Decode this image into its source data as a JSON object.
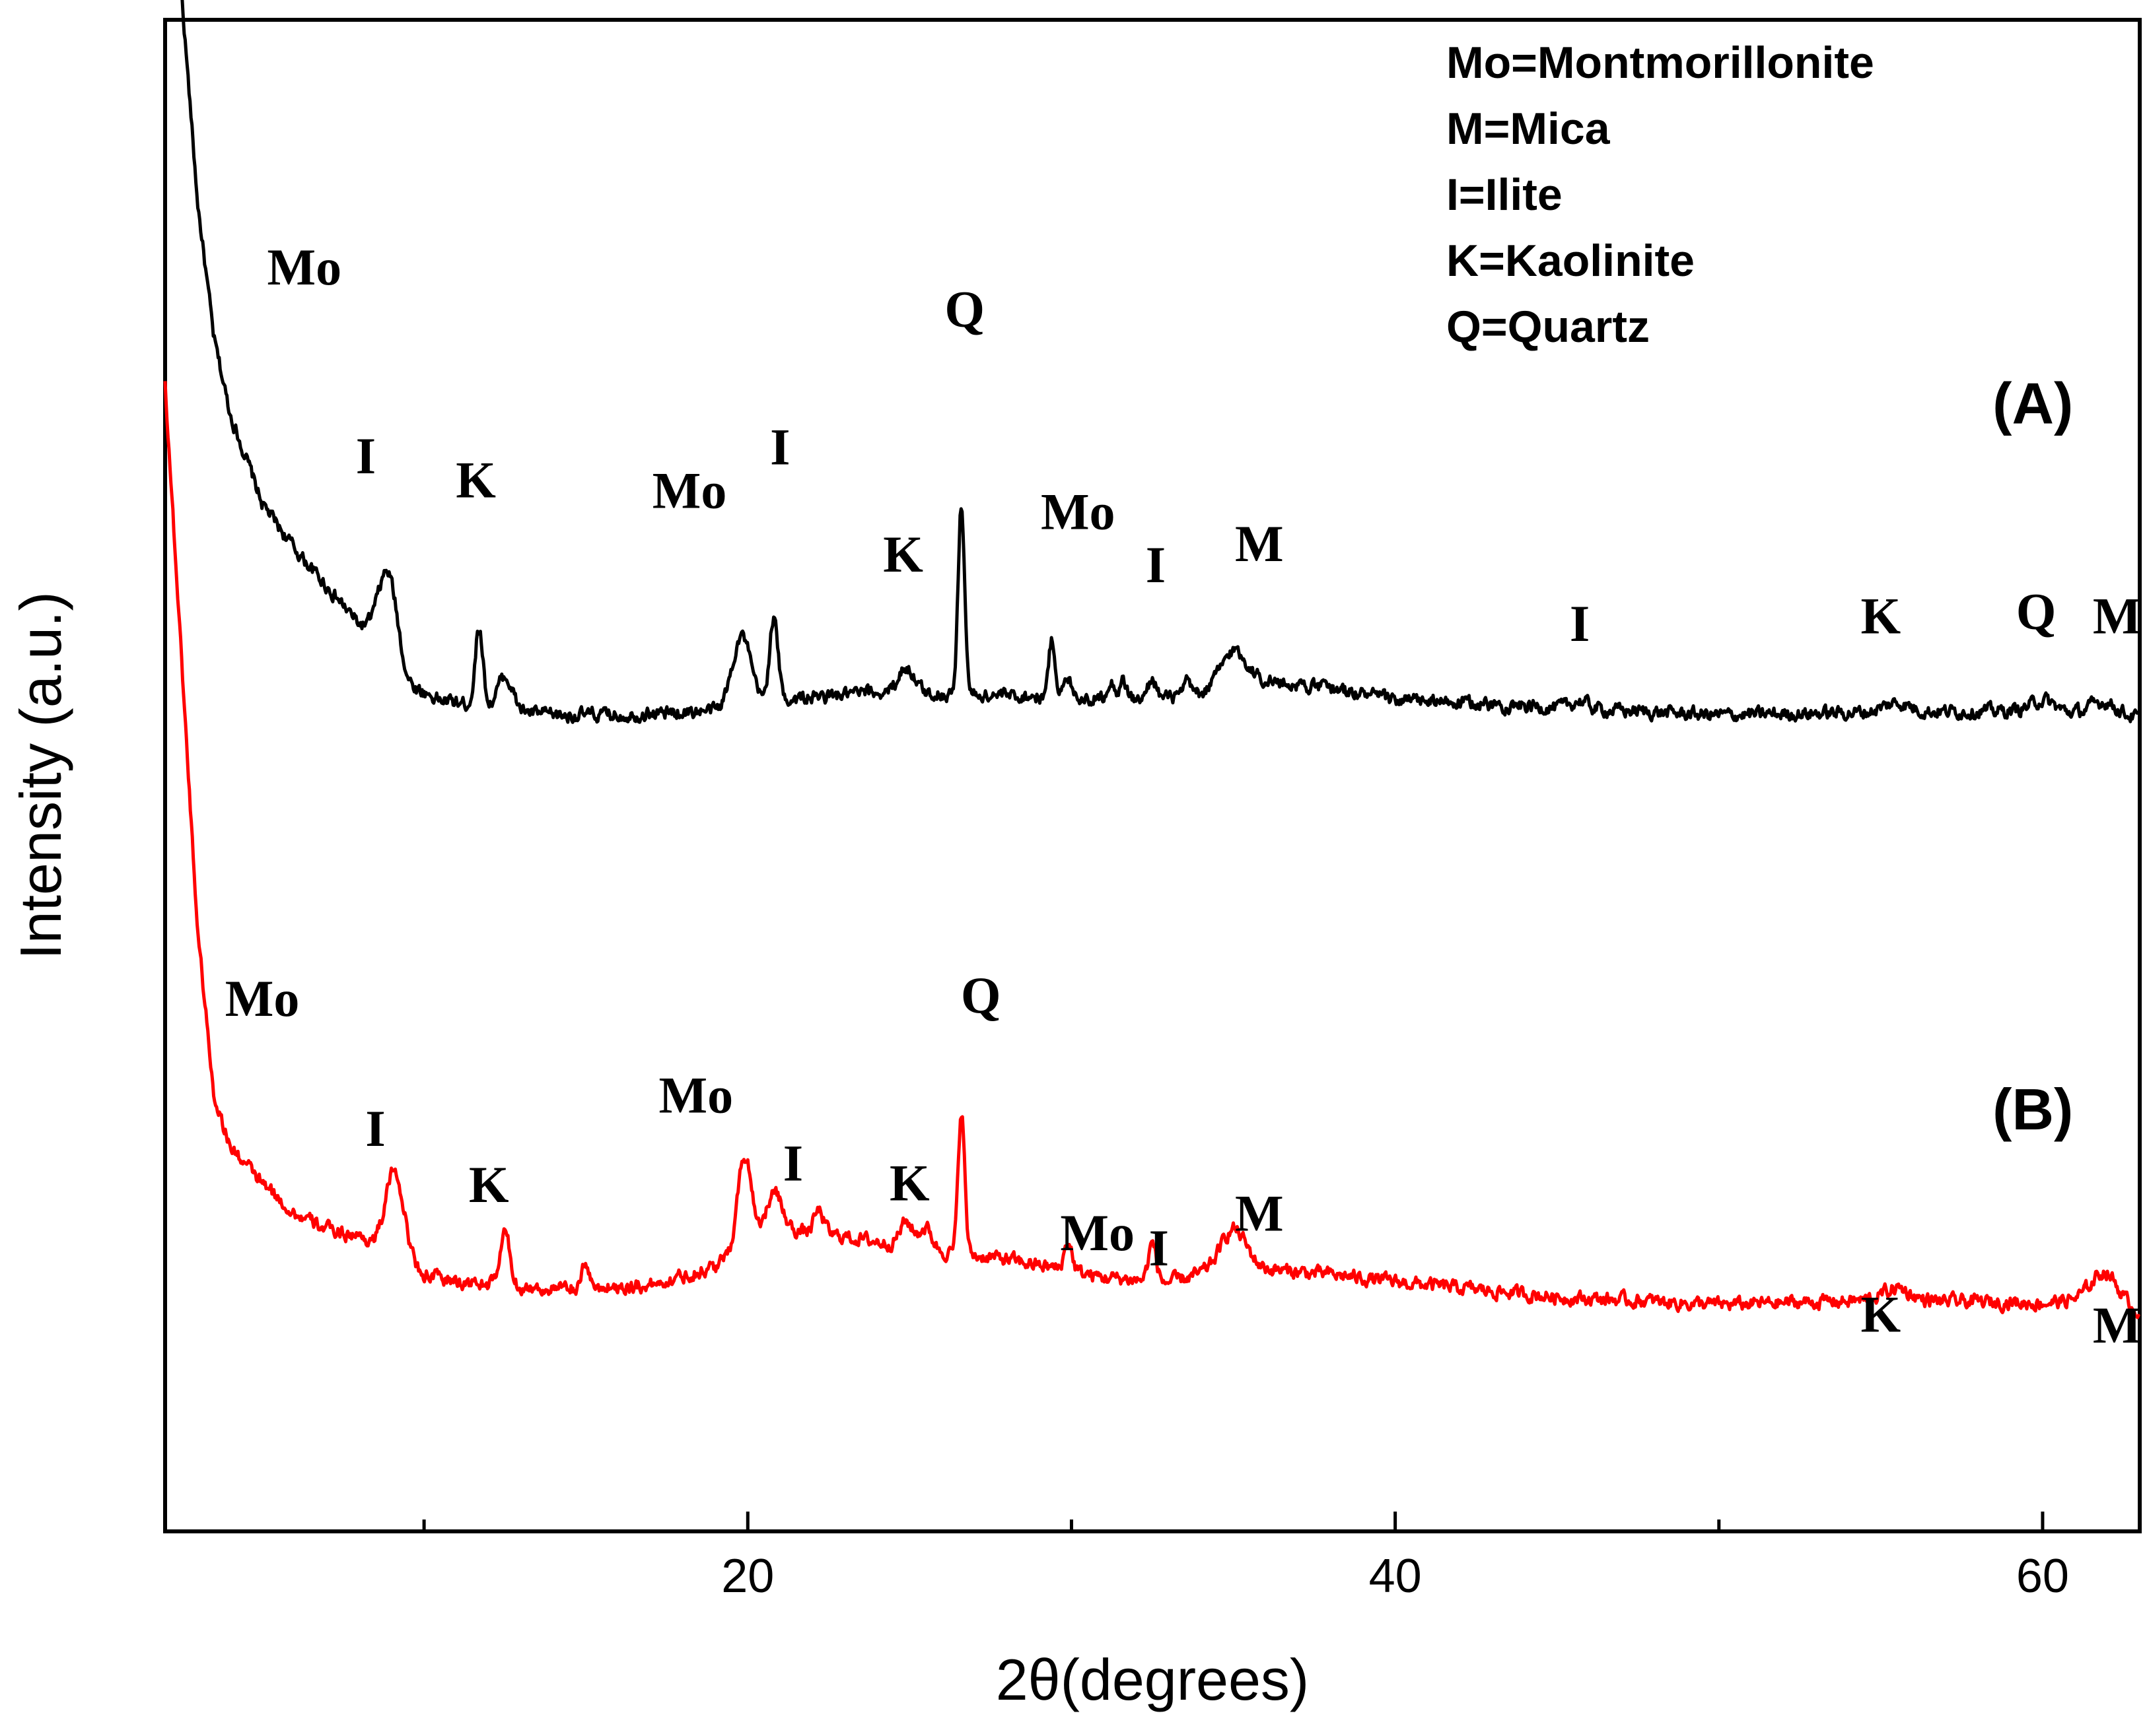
{
  "chart_data": {
    "type": "line",
    "title": "",
    "xlabel": "2θ(degrees)",
    "ylabel": "Intensity (a.u.)",
    "xlim": [
      2,
      63
    ],
    "ylim": [
      0,
      100
    ],
    "x_ticks": [
      20,
      40,
      60
    ],
    "x_tick_labels": [
      "20",
      "40",
      "60"
    ],
    "grid": false,
    "legend": {
      "placement": "top-right",
      "entries": [
        "Mo=Montmorillonite",
        "M=Mica",
        "I=Ilite",
        "K=Kaolinite",
        "Q=Quartz"
      ]
    },
    "series": [
      {
        "name": "(A)",
        "color": "#000000",
        "baseline": [
          [
            2.5,
            102
          ],
          [
            3,
            88
          ],
          [
            3.5,
            79
          ],
          [
            4,
            74
          ],
          [
            5,
            68
          ],
          [
            6,
            65
          ],
          [
            7,
            62.5
          ],
          [
            8,
            60
          ],
          [
            8.5,
            59.5
          ],
          [
            9.5,
            56
          ],
          [
            10.5,
            55
          ],
          [
            12,
            54.5
          ],
          [
            14,
            54
          ],
          [
            16,
            54
          ],
          [
            18,
            54.2
          ],
          [
            19,
            54.3
          ],
          [
            21,
            55
          ],
          [
            24,
            55.5
          ],
          [
            28,
            55.3
          ],
          [
            32,
            55
          ],
          [
            34,
            55.3
          ],
          [
            35,
            56.5
          ],
          [
            38,
            55.8
          ],
          [
            40,
            55
          ],
          [
            45,
            54.5
          ],
          [
            50,
            54
          ],
          [
            55,
            54.2
          ],
          [
            60,
            54.3
          ],
          [
            63,
            53.8
          ]
        ],
        "peaks": [
          {
            "x": 8.9,
            "height": 5.3,
            "width": 0.28,
            "label": "I"
          },
          {
            "x": 11.7,
            "height": 5.2,
            "width": 0.12,
            "label": "K"
          },
          {
            "x": 12.5,
            "height": 2.2,
            "width": 0.22,
            "label": ""
          },
          {
            "x": 19.8,
            "height": 4.7,
            "width": 0.28,
            "label": "Mo"
          },
          {
            "x": 20.8,
            "height": 5.5,
            "width": 0.13,
            "label": "I"
          },
          {
            "x": 24.9,
            "height": 1.7,
            "width": 0.25,
            "label": "K"
          },
          {
            "x": 26.6,
            "height": 12.5,
            "width": 0.1,
            "label": "Q"
          },
          {
            "x": 29.4,
            "height": 3.8,
            "width": 0.1,
            "label": "Mo"
          },
          {
            "x": 29.9,
            "height": 1.1,
            "width": 0.15,
            "label": ""
          },
          {
            "x": 31.2,
            "height": 1.2,
            "width": 0.12,
            "label": ""
          },
          {
            "x": 31.6,
            "height": 1.2,
            "width": 0.12,
            "label": ""
          },
          {
            "x": 32.5,
            "height": 1.4,
            "width": 0.12,
            "label": "I"
          },
          {
            "x": 33.6,
            "height": 0.9,
            "width": 0.12,
            "label": ""
          },
          {
            "x": 35.0,
            "height": 1.8,
            "width": 0.4,
            "label": "M"
          },
          {
            "x": 45.7,
            "height": 0.5,
            "width": 0.25,
            "label": "I"
          },
          {
            "x": 55.5,
            "height": 0.6,
            "width": 0.4,
            "label": "K"
          },
          {
            "x": 60.0,
            "height": 0.7,
            "width": 0.35,
            "label": "Q"
          },
          {
            "x": 61.9,
            "height": 0.9,
            "width": 0.4,
            "label": "M"
          }
        ]
      },
      {
        "name": "(B)",
        "color": "#ff0000",
        "baseline": [
          [
            2,
            76
          ],
          [
            2.5,
            58
          ],
          [
            3,
            40
          ],
          [
            3.5,
            29
          ],
          [
            4,
            25.5
          ],
          [
            5,
            23
          ],
          [
            6,
            21
          ],
          [
            7,
            20
          ],
          [
            8,
            19.5
          ],
          [
            9,
            18.5
          ],
          [
            10,
            17
          ],
          [
            11,
            16.5
          ],
          [
            14,
            16
          ],
          [
            17,
            16.3
          ],
          [
            19,
            17.5
          ],
          [
            20,
            19
          ],
          [
            21,
            20
          ],
          [
            23,
            19.5
          ],
          [
            26,
            18.5
          ],
          [
            28,
            18
          ],
          [
            31,
            16.8
          ],
          [
            33,
            16.5
          ],
          [
            35,
            17.5
          ],
          [
            38,
            17
          ],
          [
            40,
            16.5
          ],
          [
            45,
            15.5
          ],
          [
            50,
            15
          ],
          [
            55,
            15.3
          ],
          [
            60,
            15.1
          ],
          [
            62,
            15.5
          ],
          [
            63,
            14.5
          ]
        ],
        "peaks": [
          {
            "x": 9.1,
            "height": 5.5,
            "width": 0.28,
            "label": "I"
          },
          {
            "x": 12.5,
            "height": 3.5,
            "width": 0.15,
            "label": "K"
          },
          {
            "x": 15.0,
            "height": 1.7,
            "width": 0.1,
            "label": ""
          },
          {
            "x": 19.9,
            "height": 6.0,
            "width": 0.22,
            "label": "Mo"
          },
          {
            "x": 20.8,
            "height": 2.5,
            "width": 0.25,
            "label": "I"
          },
          {
            "x": 22.2,
            "height": 1.5,
            "width": 0.15,
            "label": ""
          },
          {
            "x": 24.9,
            "height": 1.6,
            "width": 0.2,
            "label": "K"
          },
          {
            "x": 25.5,
            "height": 1.4,
            "width": 0.2,
            "label": ""
          },
          {
            "x": 26.6,
            "height": 9.5,
            "width": 0.1,
            "label": "Q"
          },
          {
            "x": 29.9,
            "height": 1.9,
            "width": 0.12,
            "label": "Mo"
          },
          {
            "x": 32.5,
            "height": 2.5,
            "width": 0.12,
            "label": "I"
          },
          {
            "x": 35.0,
            "height": 2.5,
            "width": 0.4,
            "label": "M"
          },
          {
            "x": 55.5,
            "height": 0.8,
            "width": 0.4,
            "label": "K"
          },
          {
            "x": 61.9,
            "height": 1.7,
            "width": 0.4,
            "label": "M"
          }
        ]
      }
    ],
    "annotations": [
      {
        "series": "(A)",
        "text": "Mo",
        "x": 6.3,
        "y": 82.5
      },
      {
        "series": "(A)",
        "text": "I",
        "x": 8.2,
        "y": 70
      },
      {
        "series": "(A)",
        "text": "K",
        "x": 11.6,
        "y": 68.4
      },
      {
        "series": "(A)",
        "text": "Mo",
        "x": 18.2,
        "y": 67.7
      },
      {
        "series": "(A)",
        "text": "I",
        "x": 21.0,
        "y": 70.6
      },
      {
        "series": "(A)",
        "text": "Q",
        "x": 26.7,
        "y": 79.7
      },
      {
        "series": "(A)",
        "text": "K",
        "x": 24.8,
        "y": 63.5
      },
      {
        "series": "(A)",
        "text": "Mo",
        "x": 30.2,
        "y": 66.3
      },
      {
        "series": "(A)",
        "text": "I",
        "x": 32.6,
        "y": 62.8
      },
      {
        "series": "(A)",
        "text": "M",
        "x": 35.8,
        "y": 64.2
      },
      {
        "series": "(A)",
        "text": "I",
        "x": 45.7,
        "y": 58.9
      },
      {
        "series": "(A)",
        "text": "K",
        "x": 55.0,
        "y": 59.4
      },
      {
        "series": "(A)",
        "text": "Q",
        "x": 59.8,
        "y": 59.7
      },
      {
        "series": "(A)",
        "text": "M",
        "x": 62.3,
        "y": 59.4
      },
      {
        "series": "(B)",
        "text": "Mo",
        "x": 5.0,
        "y": 34.1
      },
      {
        "series": "(B)",
        "text": "I",
        "x": 8.5,
        "y": 25.5
      },
      {
        "series": "(B)",
        "text": "K",
        "x": 12.0,
        "y": 21.8
      },
      {
        "series": "(B)",
        "text": "Mo",
        "x": 18.4,
        "y": 27.7
      },
      {
        "series": "(B)",
        "text": "I",
        "x": 21.4,
        "y": 23.2
      },
      {
        "series": "(B)",
        "text": "Q",
        "x": 27.2,
        "y": 34.3
      },
      {
        "series": "(B)",
        "text": "K",
        "x": 25.0,
        "y": 21.9
      },
      {
        "series": "(B)",
        "text": "Mo",
        "x": 30.8,
        "y": 18.6
      },
      {
        "series": "(B)",
        "text": "I",
        "x": 32.7,
        "y": 17.6
      },
      {
        "series": "(B)",
        "text": "M",
        "x": 35.8,
        "y": 19.9
      },
      {
        "series": "(B)",
        "text": "K",
        "x": 55.0,
        "y": 13.2
      },
      {
        "series": "(B)",
        "text": "M",
        "x": 62.3,
        "y": 12.5
      }
    ],
    "series_labels": [
      {
        "text": "(A)",
        "x": 59.7,
        "y": 73.3
      },
      {
        "text": "(B)",
        "x": 59.7,
        "y": 26.6
      }
    ]
  }
}
